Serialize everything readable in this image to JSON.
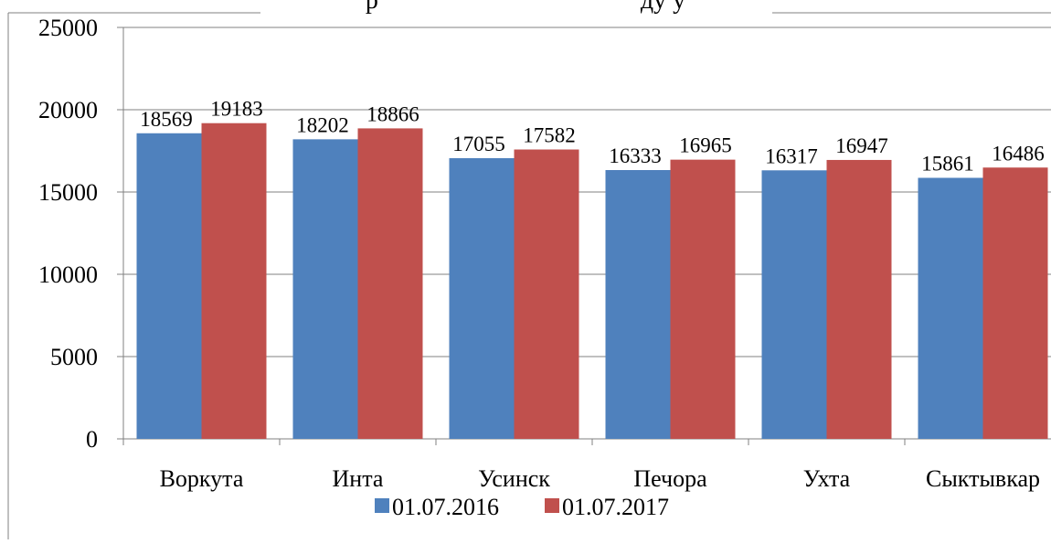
{
  "colors": {
    "series1": "#4f81bd",
    "series2": "#c0504d",
    "gridline": "#808080",
    "border": "#808080",
    "text": "#000000"
  },
  "chart_data": {
    "type": "bar",
    "title": "р                                         ду у",
    "categories": [
      "Воркута",
      "Инта",
      "Усинск",
      "Печора",
      "Ухта",
      "Сыктывкар"
    ],
    "series": [
      {
        "name": "01.07.2016",
        "values": [
          18569,
          18202,
          17055,
          16333,
          16317,
          15861
        ],
        "color": "#4f81bd"
      },
      {
        "name": "01.07.2017",
        "values": [
          19183,
          18866,
          17582,
          16965,
          16947,
          16486
        ],
        "color": "#c0504d"
      }
    ],
    "yticks": [
      0,
      5000,
      10000,
      15000,
      20000,
      25000
    ],
    "ylim": [
      0,
      25000
    ],
    "grid": true,
    "legend_position": "bottom",
    "data_labels": true
  }
}
